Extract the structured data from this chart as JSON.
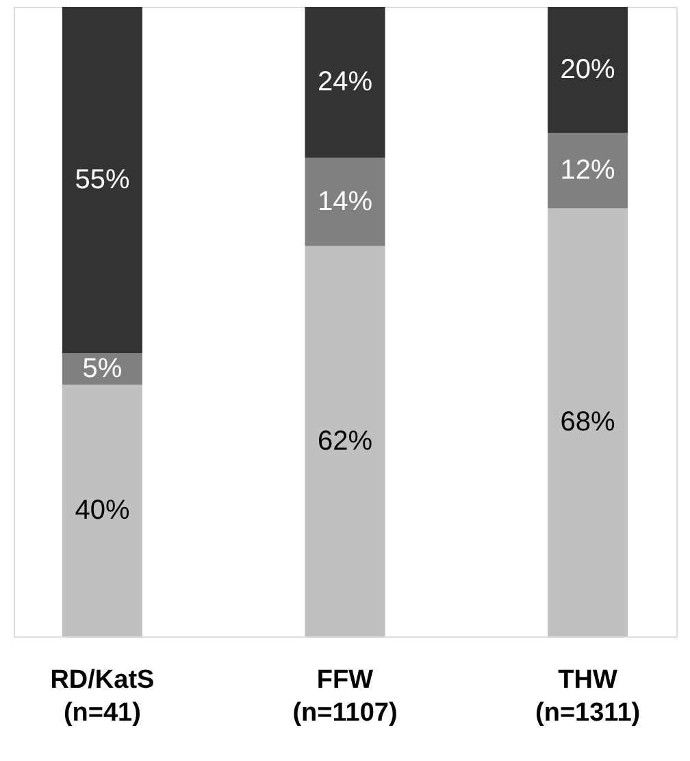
{
  "chart_data": {
    "type": "bar",
    "stacked": true,
    "categories": [
      "RD/KatS\n(n=41)",
      "FFW\n(n=1107)",
      "THW\n(n=1311)"
    ],
    "series": [
      {
        "color": "#c0c0c0",
        "values": [
          40,
          62,
          68
        ],
        "value_labels": [
          "40%",
          "62%",
          "68%"
        ]
      },
      {
        "color": "#808080",
        "values": [
          5,
          14,
          12
        ],
        "value_labels": [
          "5%",
          "14%",
          "12%"
        ]
      },
      {
        "color": "#333333",
        "values": [
          55,
          24,
          20
        ],
        "value_labels": [
          "55%",
          "24%",
          "20%"
        ]
      }
    ]
  }
}
